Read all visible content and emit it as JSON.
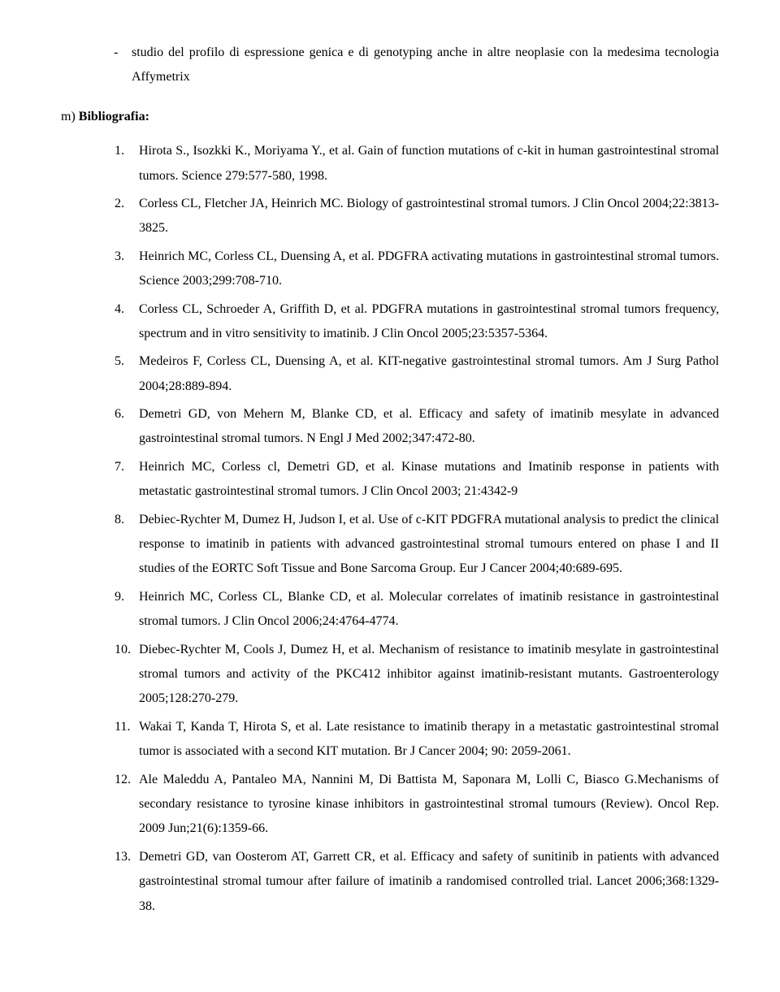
{
  "intro": {
    "bullet": "-",
    "item": "studio del profilo di espressione genica e di genotyping anche in altre neoplasie con la medesima tecnologia Affymetrix"
  },
  "heading": {
    "prefix": "m) ",
    "label": "Bibliografia:"
  },
  "references": [
    "Hirota S., Isozkki K.,  Moriyama Y., et al. Gain of function mutations of c-kit in human gastrointestinal stromal tumors. Science 279:577-580, 1998.",
    "Corless CL, Fletcher JA, Heinrich MC. Biology of gastrointestinal stromal tumors. J Clin Oncol 2004;22:3813-3825.",
    "Heinrich MC, Corless CL, Duensing A, et al. PDGFRA activating mutations in gastrointestinal stromal tumors. Science 2003;299:708-710.",
    "Corless CL, Schroeder A, Griffith D, et al. PDGFRA mutations in gastrointestinal stromal tumors frequency, spectrum and in vitro sensitivity to imatinib. J Clin Oncol 2005;23:5357-5364.",
    "Medeiros F, Corless CL, Duensing A, et al. KIT-negative gastrointestinal stromal tumors. Am J Surg Pathol 2004;28:889-894.",
    "Demetri GD, von Mehern M, Blanke CD, et al. Efficacy and safety of imatinib mesylate in advanced gastrointestinal stromal tumors. N Engl J Med 2002;347:472-80.",
    "Heinrich MC, Corless cl, Demetri GD, et al. Kinase mutations and Imatinib response in patients with metastatic gastrointestinal stromal tumors. J Clin Oncol 2003; 21:4342-9",
    "Debiec-Rychter M, Dumez H, Judson I, et al. Use of c-KIT PDGFRA mutational analysis to predict the clinical response to imatinib in patients with advanced gastrointestinal stromal tumours entered on phase I and II studies of the EORTC Soft Tissue and Bone Sarcoma Group. Eur J Cancer 2004;40:689-695.",
    "Heinrich MC, Corless CL, Blanke CD, et al. Molecular correlates of imatinib resistance in gastrointestinal stromal tumors. J Clin Oncol 2006;24:4764-4774.",
    "Diebec-Rychter M, Cools J, Dumez H, et al. Mechanism of resistance to imatinib mesylate in gastrointestinal stromal tumors and activity of the PKC412 inhibitor against imatinib-resistant mutants. Gastroenterology 2005;128:270-279.",
    "Wakai T, Kanda T, Hirota S, et al. Late resistance to imatinib therapy in a  metastatic gastrointestinal stromal tumor is associated with a second KIT mutation. Br J Cancer 2004; 90: 2059-2061.",
    "Ale Maleddu A, Pantaleo MA, Nannini M, Di Battista M, Saponara M, Lolli C, Biasco G.Mechanisms of secondary resistance to tyrosine kinase inhibitors in gastrointestinal stromal tumours (Review). Oncol Rep. 2009 Jun;21(6):1359-66.",
    "Demetri GD, van Oosterom AT, Garrett CR, et al. Efficacy and safety of sunitinib in patients with advanced gastrointestinal stromal tumour after failure of imatinib a randomised controlled trial. Lancet 2006;368:1329-38."
  ]
}
